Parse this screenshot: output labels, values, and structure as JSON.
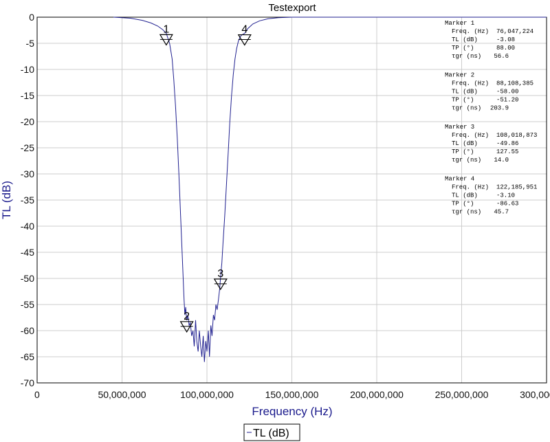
{
  "chart_data": {
    "type": "line",
    "title": "Testexport",
    "xlabel": "Frequency (Hz)",
    "ylabel": "TL (dB)",
    "xlim": [
      0,
      300000000
    ],
    "ylim": [
      -70,
      0
    ],
    "x_ticks": [
      0,
      50000000,
      100000000,
      150000000,
      200000000,
      250000000,
      300000000
    ],
    "x_tick_labels": [
      "0",
      "50,000,000",
      "100,000,000",
      "150,000,000",
      "200,000,000",
      "250,000,000",
      "300,000,000"
    ],
    "y_ticks": [
      0,
      -5,
      -10,
      -15,
      -20,
      -25,
      -30,
      -35,
      -40,
      -45,
      -50,
      -55,
      -60,
      -65,
      -70
    ],
    "y_tick_labels": [
      "0",
      "-5",
      "-10",
      "-15",
      "-20",
      "-25",
      "-30",
      "-35",
      "-40",
      "-45",
      "-50",
      "-55",
      "-60",
      "-65",
      "-70"
    ],
    "grid": true,
    "legend": {
      "label": "TL (dB)",
      "position": "bottom-center"
    },
    "series": [
      {
        "name": "TL (dB)",
        "color": "#1f1f8f",
        "x": [
          45000000,
          55000000,
          62000000,
          67000000,
          71000000,
          74000000,
          76047224,
          78000000,
          79500000,
          80500000,
          81500000,
          82500000,
          83500000,
          84500000,
          85500000,
          86500000,
          87000000,
          87500000,
          88108385,
          88800000,
          89500000,
          90200000,
          91000000,
          91800000,
          92500000,
          93300000,
          94000000,
          94800000,
          95500000,
          96300000,
          97000000,
          97800000,
          98500000,
          99300000,
          100000000,
          100800000,
          101500000,
          102300000,
          103000000,
          103800000,
          104500000,
          105300000,
          106000000,
          106800000,
          107500000,
          108018873,
          108800000,
          109500000,
          110500000,
          111500000,
          112500000,
          113500000,
          114500000,
          115500000,
          116500000,
          117500000,
          118500000,
          119500000,
          120500000,
          122185951,
          124000000,
          127000000,
          131000000,
          136000000,
          142000000,
          150000000,
          175000000,
          225000000,
          275000000,
          300000000
        ],
        "y": [
          0,
          -0.2,
          -0.6,
          -1.1,
          -1.7,
          -2.4,
          -3.08,
          -5,
          -8,
          -12,
          -17,
          -23,
          -30,
          -38,
          -46,
          -54,
          -57,
          -55.5,
          -58,
          -57,
          -59,
          -58.5,
          -61,
          -60,
          -63,
          -58,
          -62,
          -64,
          -60,
          -63,
          -65,
          -61,
          -66,
          -62,
          -64,
          -60,
          -65,
          -59,
          -61,
          -57,
          -58,
          -55,
          -56,
          -54,
          -52,
          -49.86,
          -47,
          -43,
          -38,
          -32,
          -26,
          -20,
          -15,
          -11,
          -8,
          -6,
          -4.6,
          -3.8,
          -3.4,
          -3.1,
          -2.2,
          -1.3,
          -0.7,
          -0.3,
          -0.1,
          0,
          0,
          0,
          0,
          0
        ]
      }
    ],
    "markers": [
      {
        "number": "1",
        "x": 76047224,
        "y": -3.08,
        "freq_label": "Freq. (Hz)",
        "freq": "76,047,224",
        "tl_label": "TL (dB)",
        "tl": "-3.08",
        "tp_label": "TP (°)",
        "tp": "88.00",
        "tgr_label": "τgr (ns)",
        "tgr": "56.6"
      },
      {
        "number": "2",
        "x": 88108385,
        "y": -58.0,
        "freq_label": "Freq. (Hz)",
        "freq": "88,108,385",
        "tl_label": "TL (dB)",
        "tl": "-58.00",
        "tp_label": "TP (°)",
        "tp": "-51.20",
        "tgr_label": "τgr (ns)",
        "tgr": "203.9"
      },
      {
        "number": "3",
        "x": 108018873,
        "y": -49.86,
        "freq_label": "Freq. (Hz)",
        "freq": "108,018,873",
        "tl_label": "TL (dB)",
        "tl": "-49.86",
        "tp_label": "TP (°)",
        "tp": "127.55",
        "tgr_label": "τgr (ns)",
        "tgr": "14.0"
      },
      {
        "number": "4",
        "x": 122185951,
        "y": -3.1,
        "freq_label": "Freq. (Hz)",
        "freq": "122,185,951",
        "tl_label": "TL (dB)",
        "tl": "-3.10",
        "tp_label": "TP (°)",
        "tp": "-86.63",
        "tgr_label": "τgr (ns)",
        "tgr": "45.7"
      }
    ],
    "marker_titles": [
      "Marker 1",
      "Marker 2",
      "Marker 3",
      "Marker 4"
    ]
  }
}
